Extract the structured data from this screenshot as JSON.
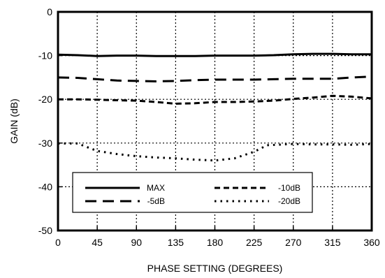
{
  "chart_data": {
    "type": "line",
    "xlabel": "PHASE SETTING (DEGREES)",
    "ylabel": "GAIN (dB)",
    "xlim": [
      0,
      360
    ],
    "ylim": [
      -50,
      0
    ],
    "x_ticks": [
      0,
      45,
      90,
      135,
      180,
      225,
      270,
      315,
      360
    ],
    "y_ticks": [
      0,
      -10,
      -20,
      -30,
      -40,
      -50
    ],
    "x_tick_labels": [
      "0",
      "45",
      "90",
      "135",
      "180",
      "225",
      "270",
      "315",
      "360"
    ],
    "y_tick_labels": [
      "0",
      "-10",
      "-20",
      "-30",
      "-40",
      "-50"
    ],
    "grid": "dotted",
    "legend_position": "bottom-center",
    "series": [
      {
        "name": "MAX",
        "style": "solid",
        "x": [
          0,
          22.5,
          45,
          67.5,
          90,
          112.5,
          135,
          157.5,
          180,
          202.5,
          225,
          247.5,
          270,
          292.5,
          315,
          337.5,
          360
        ],
        "y": [
          -9.8,
          -9.9,
          -10.1,
          -10.0,
          -10.0,
          -10.1,
          -10.1,
          -10.1,
          -10.0,
          -10.0,
          -10.0,
          -9.9,
          -9.7,
          -9.6,
          -9.6,
          -9.7,
          -9.7
        ]
      },
      {
        "name": "-5dB",
        "style": "long-dash",
        "x": [
          0,
          22.5,
          45,
          67.5,
          90,
          112.5,
          135,
          157.5,
          180,
          202.5,
          225,
          247.5,
          270,
          292.5,
          315,
          337.5,
          360
        ],
        "y": [
          -15.0,
          -15.1,
          -15.4,
          -15.7,
          -15.8,
          -15.9,
          -15.8,
          -15.6,
          -15.5,
          -15.5,
          -15.5,
          -15.4,
          -15.3,
          -15.3,
          -15.3,
          -15.0,
          -14.8
        ]
      },
      {
        "name": "-10dB",
        "style": "short-dash",
        "x": [
          0,
          22.5,
          45,
          67.5,
          90,
          112.5,
          135,
          157.5,
          180,
          202.5,
          225,
          247.5,
          270,
          292.5,
          315,
          337.5,
          360
        ],
        "y": [
          -20.0,
          -20.0,
          -20.1,
          -20.2,
          -20.3,
          -20.6,
          -21.0,
          -20.9,
          -20.6,
          -20.6,
          -20.5,
          -20.3,
          -19.9,
          -19.6,
          -19.2,
          -19.4,
          -19.8
        ]
      },
      {
        "name": "-20dB",
        "style": "dotted",
        "x": [
          0,
          22.5,
          45,
          67.5,
          90,
          112.5,
          135,
          157.5,
          180,
          202.5,
          225,
          240,
          270,
          292.5,
          315,
          337.5,
          360
        ],
        "y": [
          -30.1,
          -30.1,
          -31.8,
          -32.5,
          -33.0,
          -33.3,
          -33.5,
          -33.8,
          -34.0,
          -33.5,
          -32.0,
          -30.5,
          -30.2,
          -30.3,
          -30.3,
          -30.4,
          -30.2
        ]
      }
    ],
    "legend": [
      {
        "label": "MAX",
        "style": "solid"
      },
      {
        "label": "-10dB",
        "style": "short-dash"
      },
      {
        "label": "-5dB",
        "style": "long-dash"
      },
      {
        "label": "-20dB",
        "style": "dotted"
      }
    ]
  }
}
